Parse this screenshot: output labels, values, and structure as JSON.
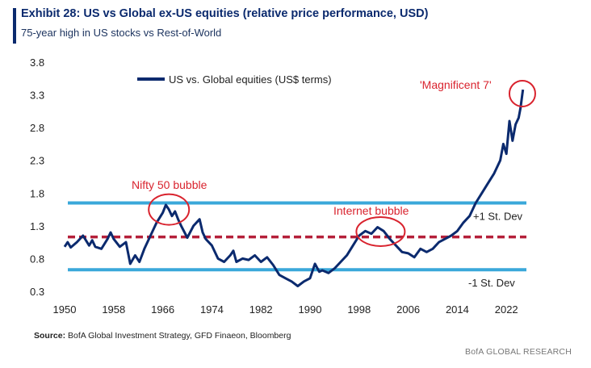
{
  "header": {
    "title": "Exhibit 28: US vs Global ex-US equities (relative price performance, USD)",
    "subtitle": "75-year high in US stocks vs Rest-of-World"
  },
  "footer": {
    "source_label": "Source:",
    "source_text": " BofA Global Investment Strategy, GFD Finaeon, Bloomberg",
    "brand": "BofA GLOBAL RESEARCH"
  },
  "colors": {
    "series": "#0b2a6e",
    "band": "#3aa8da",
    "mean": "#b5203a",
    "annotation": "#d9232e"
  },
  "chart_data": {
    "type": "line",
    "title": "",
    "xlabel": "",
    "ylabel": "",
    "xlim": [
      1950,
      2025
    ],
    "ylim": [
      0.3,
      3.8
    ],
    "x_ticks": [
      "1950",
      "1958",
      "1966",
      "1974",
      "1982",
      "1990",
      "1998",
      "2006",
      "2014",
      "2022"
    ],
    "y_ticks": [
      "0.3",
      "0.8",
      "1.3",
      "1.8",
      "2.3",
      "2.8",
      "3.3",
      "3.8"
    ],
    "legend": {
      "placement": "top-left"
    },
    "grid": false,
    "series": [
      {
        "name": "US vs. Global equities (US$ terms)",
        "x": [
          1950,
          1950.5,
          1951,
          1952,
          1953,
          1954,
          1954.5,
          1955,
          1956,
          1957,
          1957.5,
          1958,
          1959,
          1960,
          1960.7,
          1961.5,
          1962.2,
          1963,
          1964,
          1965,
          1966,
          1966.5,
          1967,
          1967.5,
          1968,
          1968.5,
          1969,
          1970,
          1971,
          1972,
          1972.5,
          1973,
          1974,
          1975,
          1976,
          1977,
          1977.5,
          1978,
          1979,
          1980,
          1981,
          1982,
          1983,
          1984,
          1985,
          1986,
          1987,
          1988,
          1989,
          1990,
          1990.8,
          1991.5,
          1992,
          1993,
          1994,
          1995,
          1996,
          1997,
          1998,
          1999,
          2000,
          2001,
          2002,
          2003,
          2004,
          2005,
          2006,
          2007,
          2008,
          2009,
          2010,
          2011,
          2012,
          2013,
          2014,
          2015,
          2016,
          2017,
          2018,
          2019,
          2020,
          2021,
          2021.5,
          2022,
          2022.5,
          2023,
          2023.5,
          2024,
          2024.3,
          2024.7
        ],
        "values": [
          0.98,
          1.05,
          0.97,
          1.05,
          1.15,
          1.0,
          1.08,
          0.98,
          0.95,
          1.1,
          1.2,
          1.1,
          0.98,
          1.05,
          0.72,
          0.85,
          0.75,
          0.95,
          1.15,
          1.35,
          1.5,
          1.62,
          1.55,
          1.45,
          1.52,
          1.4,
          1.3,
          1.12,
          1.3,
          1.4,
          1.2,
          1.1,
          1.0,
          0.8,
          0.75,
          0.85,
          0.92,
          0.75,
          0.8,
          0.78,
          0.85,
          0.75,
          0.82,
          0.7,
          0.55,
          0.5,
          0.45,
          0.38,
          0.45,
          0.5,
          0.72,
          0.6,
          0.62,
          0.58,
          0.65,
          0.75,
          0.85,
          1.0,
          1.15,
          1.22,
          1.18,
          1.28,
          1.22,
          1.1,
          1.0,
          0.9,
          0.88,
          0.82,
          0.95,
          0.9,
          0.95,
          1.05,
          1.1,
          1.15,
          1.22,
          1.35,
          1.45,
          1.65,
          1.8,
          1.95,
          2.1,
          2.3,
          2.55,
          2.4,
          2.9,
          2.6,
          2.85,
          2.95,
          3.1,
          3.38
        ]
      }
    ],
    "reference_lines": [
      {
        "label": "+1 St. Dev",
        "value": 1.65
      },
      {
        "label": "",
        "value": 1.13
      },
      {
        "label": "-1 St. Dev",
        "value": 0.63
      }
    ],
    "annotations": [
      {
        "label": "Nifty 50 bubble",
        "x": 1967,
        "y": 1.55
      },
      {
        "label": "Internet bubble",
        "x": 2001.5,
        "y": 1.2
      },
      {
        "label": "'Magnificent 7'",
        "x": 2024.6,
        "y": 3.32
      }
    ]
  }
}
